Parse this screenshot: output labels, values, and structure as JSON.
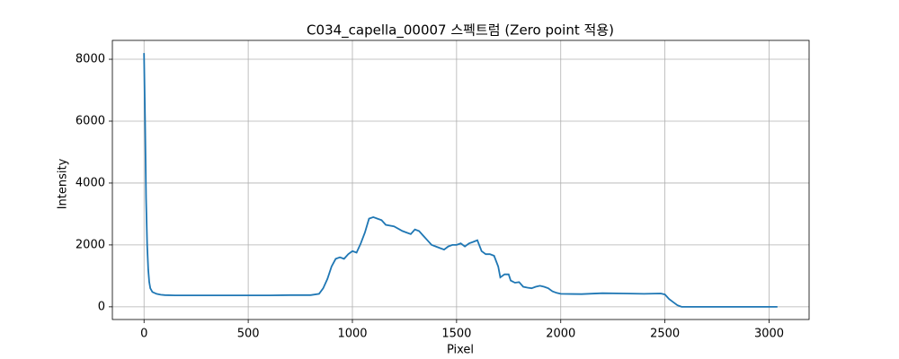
{
  "chart_data": {
    "type": "line",
    "title": "C034_capella_00007 스펙트럼 (Zero point 적용)",
    "x_label": "Pixel",
    "y_label": "Intensity",
    "x": [
      0,
      5,
      10,
      15,
      20,
      25,
      30,
      40,
      60,
      80,
      100,
      150,
      200,
      300,
      400,
      500,
      600,
      700,
      800,
      840,
      860,
      880,
      900,
      920,
      940,
      960,
      980,
      1000,
      1020,
      1040,
      1060,
      1080,
      1100,
      1120,
      1140,
      1160,
      1200,
      1240,
      1260,
      1280,
      1300,
      1320,
      1340,
      1360,
      1380,
      1400,
      1420,
      1440,
      1460,
      1480,
      1500,
      1520,
      1540,
      1560,
      1580,
      1600,
      1620,
      1640,
      1660,
      1680,
      1700,
      1710,
      1730,
      1750,
      1760,
      1780,
      1800,
      1820,
      1840,
      1860,
      1880,
      1900,
      1920,
      1940,
      1960,
      1980,
      2000,
      2100,
      2200,
      2300,
      2400,
      2480,
      2500,
      2520,
      2540,
      2560,
      2580,
      3040
    ],
    "series": [
      {
        "name": "Intensity",
        "color": "#1f77b4",
        "values": [
          8200,
          6000,
          3500,
          2000,
          1200,
          800,
          600,
          480,
          420,
          390,
          380,
          370,
          370,
          370,
          370,
          370,
          370,
          380,
          380,
          420,
          600,
          900,
          1300,
          1550,
          1600,
          1550,
          1700,
          1800,
          1750,
          2050,
          2400,
          2850,
          2900,
          2850,
          2800,
          2650,
          2600,
          2450,
          2400,
          2350,
          2500,
          2450,
          2300,
          2150,
          2000,
          1950,
          1900,
          1850,
          1950,
          2000,
          2000,
          2050,
          1950,
          2050,
          2100,
          2150,
          1800,
          1700,
          1700,
          1650,
          1300,
          950,
          1050,
          1050,
          850,
          780,
          800,
          650,
          620,
          600,
          650,
          680,
          650,
          600,
          500,
          450,
          420,
          410,
          440,
          430,
          420,
          430,
          400,
          250,
          150,
          50,
          0,
          0
        ]
      }
    ],
    "xlim": [
      -152,
      3192
    ],
    "ylim": [
      -410,
      8610
    ],
    "xticks": [
      0,
      500,
      1000,
      1500,
      2000,
      2500,
      3000
    ],
    "yticks": [
      0,
      2000,
      4000,
      6000,
      8000
    ],
    "grid": true
  }
}
